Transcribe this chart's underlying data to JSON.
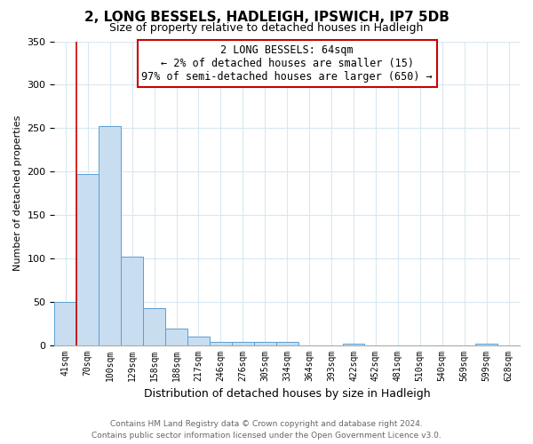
{
  "title": "2, LONG BESSELS, HADLEIGH, IPSWICH, IP7 5DB",
  "subtitle": "Size of property relative to detached houses in Hadleigh",
  "xlabel": "Distribution of detached houses by size in Hadleigh",
  "ylabel": "Number of detached properties",
  "bin_labels": [
    "41sqm",
    "70sqm",
    "100sqm",
    "129sqm",
    "158sqm",
    "188sqm",
    "217sqm",
    "246sqm",
    "276sqm",
    "305sqm",
    "334sqm",
    "364sqm",
    "393sqm",
    "422sqm",
    "452sqm",
    "481sqm",
    "510sqm",
    "540sqm",
    "569sqm",
    "599sqm",
    "628sqm"
  ],
  "bar_heights": [
    50,
    197,
    252,
    102,
    43,
    19,
    10,
    4,
    4,
    4,
    4,
    0,
    0,
    2,
    0,
    0,
    0,
    0,
    0,
    2,
    0
  ],
  "bar_color": "#c8ddf0",
  "bar_edge_color": "#5a9fd4",
  "annotation_box_text": "2 LONG BESSELS: 64sqm\n← 2% of detached houses are smaller (15)\n97% of semi-detached houses are larger (650) →",
  "annotation_box_edge_color": "#cc0000",
  "property_line_color": "#cc0000",
  "ylim": [
    0,
    350
  ],
  "yticks": [
    0,
    50,
    100,
    150,
    200,
    250,
    300,
    350
  ],
  "footer_line1": "Contains HM Land Registry data © Crown copyright and database right 2024.",
  "footer_line2": "Contains public sector information licensed under the Open Government Licence v3.0.",
  "title_fontsize": 11,
  "subtitle_fontsize": 9,
  "xlabel_fontsize": 9,
  "ylabel_fontsize": 8,
  "tick_fontsize": 8,
  "xtick_fontsize": 7,
  "footer_fontsize": 6.5,
  "annotation_fontsize": 8.5
}
